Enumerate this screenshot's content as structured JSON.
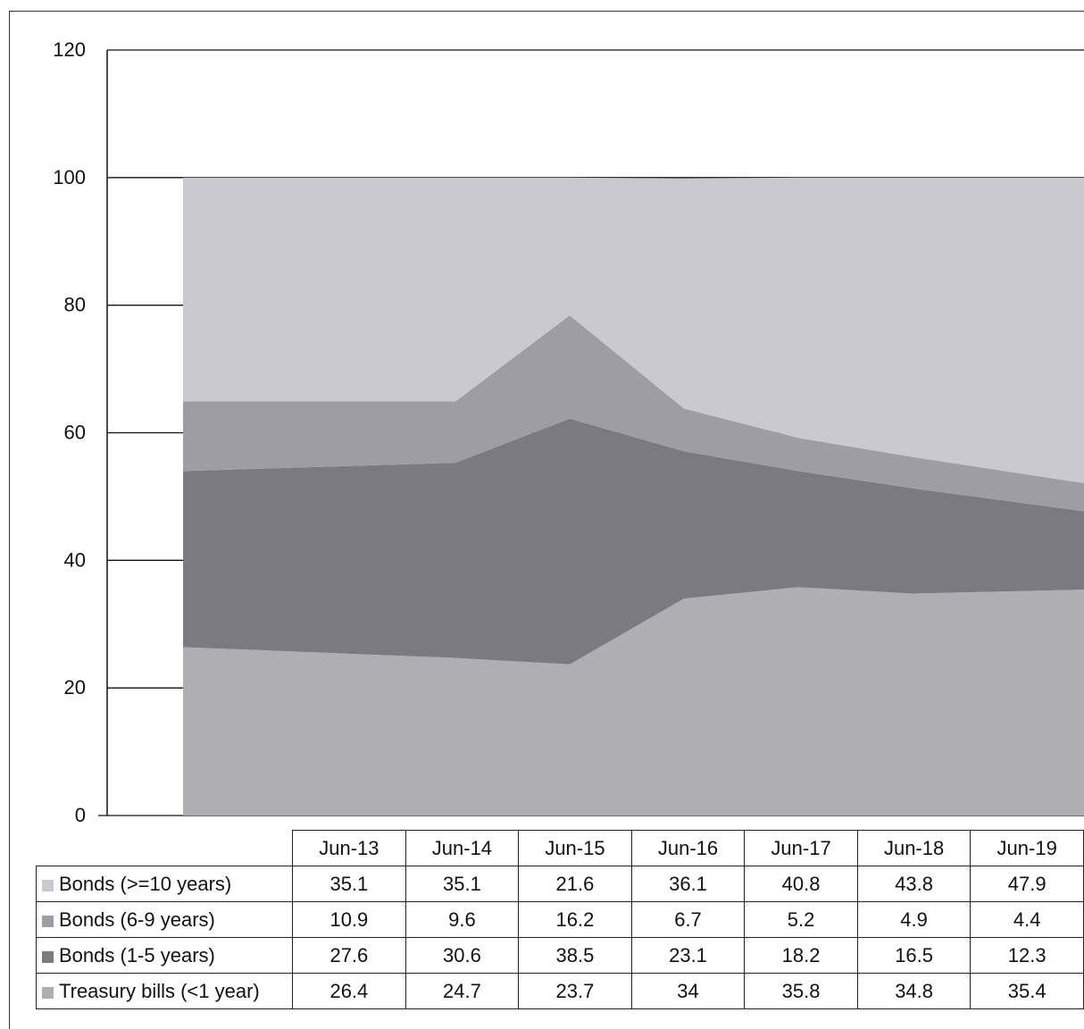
{
  "chart_data": {
    "type": "area",
    "stacked": true,
    "title": "",
    "xlabel": "",
    "ylabel": "",
    "ylim": [
      0,
      120
    ],
    "yticks": [
      0,
      20,
      40,
      60,
      80,
      100,
      120
    ],
    "grid": true,
    "legend": "data-table-below",
    "categories": [
      "Jun-13",
      "Jun-14",
      "Jun-15",
      "Jun-16",
      "Jun-17",
      "Jun-18",
      "Jun-19"
    ],
    "series": [
      {
        "name": "Bonds (>=10 years)",
        "color": "#c9c9cf",
        "values": [
          35.1,
          35.1,
          21.6,
          36.1,
          40.8,
          43.8,
          47.9
        ]
      },
      {
        "name": "Bonds (6-9 years)",
        "color": "#9d9da3",
        "values": [
          10.9,
          9.6,
          16.2,
          6.7,
          5.2,
          4.9,
          4.4
        ]
      },
      {
        "name": "Bonds (1-5 years)",
        "color": "#7a7a80",
        "values": [
          27.6,
          30.6,
          38.5,
          23.1,
          18.2,
          16.5,
          12.3
        ]
      },
      {
        "name": "Treasury bills (<1 year)",
        "color": "#aeaeb3",
        "values": [
          26.4,
          24.7,
          23.7,
          34,
          35.8,
          34.8,
          35.4
        ]
      }
    ]
  }
}
